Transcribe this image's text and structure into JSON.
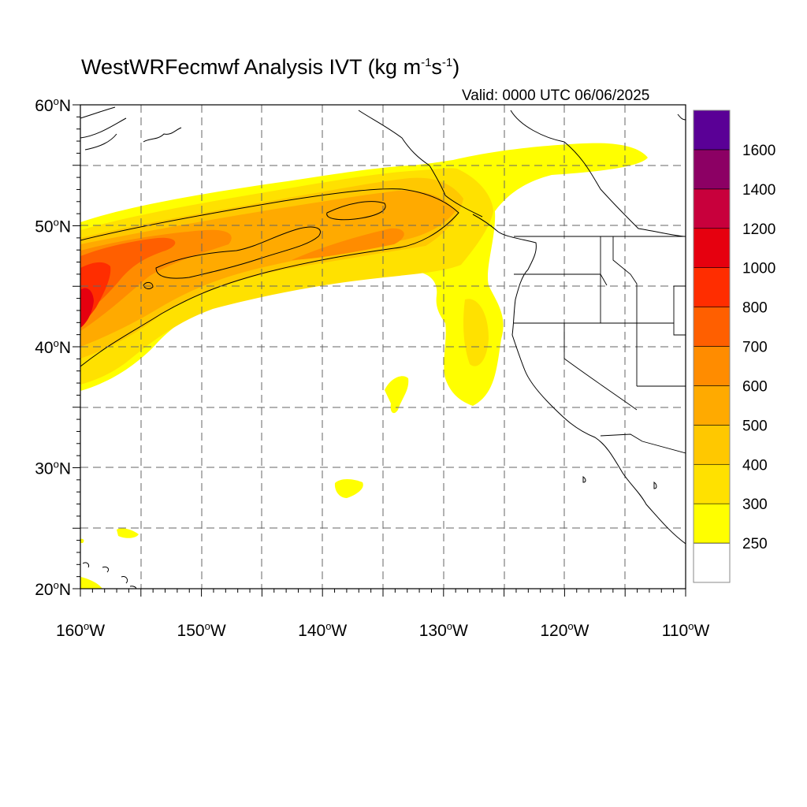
{
  "title": {
    "main": "WestWRFecmwf Analysis IVT (kg m",
    "exp1": "-1",
    "mid": "s",
    "exp2": "-1",
    "close": ")"
  },
  "valid_label": "Valid: 0000 UTC 06/06/2025",
  "map": {
    "lon_range": [
      -160,
      -110
    ],
    "lat_range": [
      20,
      60
    ],
    "grid_lon": [
      -155,
      -150,
      -145,
      -140,
      -135,
      -130,
      -125,
      -120,
      -115
    ],
    "grid_lat": [
      25,
      30,
      35,
      40,
      45,
      50,
      55
    ],
    "grid": "dashed",
    "lat_labels": [
      {
        "lat": 60,
        "text": "60",
        "deg": "o",
        "hemi": "N"
      },
      {
        "lat": 50,
        "text": "50",
        "deg": "o",
        "hemi": "N"
      },
      {
        "lat": 40,
        "text": "40",
        "deg": "o",
        "hemi": "N"
      },
      {
        "lat": 30,
        "text": "30",
        "deg": "o",
        "hemi": "N"
      },
      {
        "lat": 20,
        "text": "20",
        "deg": "o",
        "hemi": "N"
      }
    ],
    "lon_labels": [
      {
        "lon": -160,
        "text": "160",
        "deg": "o",
        "hemi": "W"
      },
      {
        "lon": -150,
        "text": "150",
        "deg": "o",
        "hemi": "W"
      },
      {
        "lon": -140,
        "text": "140",
        "deg": "o",
        "hemi": "W"
      },
      {
        "lon": -130,
        "text": "130",
        "deg": "o",
        "hemi": "W"
      },
      {
        "lon": -120,
        "text": "120",
        "deg": "o",
        "hemi": "W"
      },
      {
        "lon": -110,
        "text": "110",
        "deg": "o",
        "hemi": "W"
      }
    ]
  },
  "colorbar": {
    "colors": [
      "#ffffff",
      "#ffff00",
      "#ffe100",
      "#ffc800",
      "#ffaa00",
      "#ff8c00",
      "#ff5f00",
      "#ff2d00",
      "#e6000f",
      "#c8003c",
      "#8c0064",
      "#5a0096"
    ],
    "labels": [
      "250",
      "300",
      "400",
      "500",
      "600",
      "700",
      "800",
      "1000",
      "1200",
      "1400",
      "1600"
    ]
  }
}
